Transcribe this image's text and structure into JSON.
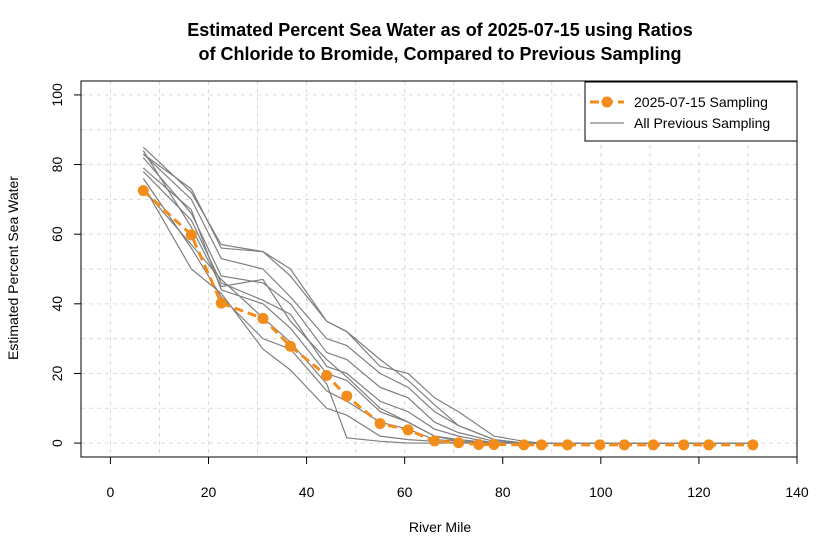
{
  "chart_data": {
    "type": "line",
    "title_lines": [
      "Estimated Percent Sea Water as of 2025-07-15 using Ratios",
      "of Chloride to Bromide, Compared to Previous Sampling"
    ],
    "xlabel": "River Mile",
    "ylabel": "Estimated Percent Sea Water",
    "xlim": [
      -6,
      140
    ],
    "ylim": [
      -4,
      104
    ],
    "xticks": [
      0,
      20,
      40,
      60,
      80,
      100,
      120,
      140
    ],
    "yticks": [
      0,
      20,
      40,
      60,
      80,
      100
    ],
    "grid": true,
    "legend_position": "top-right",
    "series": [
      {
        "name": "2025-07-15 Sampling",
        "color": "#f28c1a",
        "style": "dashed-with-points",
        "x": [
          6.7,
          16.5,
          22.6,
          31.1,
          36.7,
          44.1,
          48.2,
          55.0,
          60.7,
          66.1,
          71.0,
          75.1,
          78.2,
          84.3,
          87.9,
          93.2,
          99.8,
          104.8,
          110.7,
          116.9,
          122.0,
          131.0
        ],
        "y": [
          72.5,
          59.8,
          40.2,
          35.8,
          27.8,
          19.4,
          13.5,
          5.6,
          3.8,
          0.6,
          0.1,
          -0.4,
          -0.4,
          -0.5,
          -0.5,
          -0.5,
          -0.5,
          -0.5,
          -0.5,
          -0.5,
          -0.5,
          -0.5
        ]
      },
      {
        "name": "All Previous Sampling",
        "color": "#7f7f7f",
        "style": "thin-lines",
        "lines": [
          {
            "x": [
              6.7,
              16.5,
              22.6,
              31.1,
              36.7,
              44.1,
              48.2,
              55.0,
              60.7,
              66.1,
              71.0,
              78.2,
              84.3,
              87.9,
              93.2,
              131.0
            ],
            "y": [
              85,
              72,
              57,
              55,
              50,
              35,
              32,
              24,
              18,
              11,
              5,
              1,
              0,
              0,
              0,
              0
            ]
          },
          {
            "x": [
              6.7,
              16.5,
              22.6,
              31.1,
              36.7,
              44.1,
              48.2,
              55.0,
              60.7,
              66.1,
              71.0,
              78.2,
              84.3,
              87.9,
              93.2,
              131.0
            ],
            "y": [
              83,
              73,
              56,
              55,
              48,
              35,
              32,
              22,
              20,
              13,
              9,
              2,
              0.5,
              0,
              0,
              0
            ]
          },
          {
            "x": [
              6.7,
              16.5,
              22.6,
              31.1,
              36.7,
              44.1,
              48.2,
              55.0,
              60.7,
              66.1,
              71.0,
              78.2,
              84.3,
              87.9,
              93.2,
              131.0
            ],
            "y": [
              83,
              70,
              53,
              50,
              42,
              30,
              28,
              20,
              16,
              9,
              5,
              1,
              0,
              0,
              0,
              0
            ]
          },
          {
            "x": [
              6.7,
              16.5,
              22.6,
              31.1,
              36.7,
              44.1,
              48.2,
              55.0,
              60.7,
              66.1,
              71.0,
              78.2,
              84.3,
              87.9,
              93.2,
              131.0
            ],
            "y": [
              82,
              66,
              48,
              46,
              40,
              26,
              24,
              16,
              13,
              6,
              3,
              0.5,
              0,
              0,
              0,
              0
            ]
          },
          {
            "x": [
              6.7,
              16.5,
              22.6,
              31.1,
              36.7,
              44.1,
              48.2,
              55.0,
              60.7,
              66.1,
              71.0,
              78.2,
              84.3,
              87.9,
              93.2,
              131.0
            ],
            "y": [
              78,
              64,
              46,
              41,
              37,
              22,
              20,
              12,
              9,
              4,
              2,
              0,
              0,
              0,
              0,
              0
            ]
          },
          {
            "x": [
              6.7,
              16.5,
              22.6,
              31.1,
              36.7,
              44.1,
              48.2,
              55.0,
              60.7,
              66.1,
              71.0,
              78.2,
              84.3,
              87.9,
              93.2,
              131.0
            ],
            "y": [
              79,
              67,
              44,
              40,
              33,
              20,
              18,
              9,
              6,
              2,
              1,
              0,
              0,
              0,
              0,
              0
            ]
          },
          {
            "x": [
              6.7,
              16.5,
              22.6,
              31.1,
              36.7,
              44.1,
              48.2,
              55.0,
              60.7,
              66.1,
              71.0,
              78.2,
              84.3,
              87.9,
              93.2,
              131.0
            ],
            "y": [
              76,
              56,
              42,
              30,
              27,
              15,
              12,
              6,
              4,
              1,
              0.5,
              0,
              0,
              0,
              0,
              0
            ]
          },
          {
            "x": [
              6.7,
              16.5,
              22.6,
              31.1,
              36.7,
              44.1,
              48.2,
              55.0,
              60.7,
              66.1,
              71.0,
              78.2,
              84.3,
              87.9,
              93.2,
              131.0
            ],
            "y": [
              74,
              50,
              43,
              27,
              21,
              10,
              8,
              2,
              1,
              0.5,
              0,
              0,
              0,
              0,
              0,
              0
            ]
          },
          {
            "x": [
              6.7,
              16.5,
              22.6,
              31.1,
              36.7,
              44.1,
              48.2,
              55.0,
              60.7,
              66.1,
              71.0,
              78.2,
              84.3,
              87.9,
              93.2,
              131.0
            ],
            "y": [
              84,
              62,
              45,
              47,
              35,
              24,
              19,
              10,
              6,
              2,
              0.5,
              0,
              0,
              0,
              0,
              0
            ]
          },
          {
            "x": [
              6.7,
              16.5,
              22.6,
              31.1,
              36.7,
              44.1,
              48.2,
              55.0,
              60.7,
              66.1,
              71.0,
              78.2,
              84.3,
              87.9,
              93.2,
              131.0
            ],
            "y": [
              73,
              57,
              47,
              36,
              29,
              17,
              1.5,
              0.5,
              0,
              0,
              0,
              0,
              0,
              0,
              0,
              0
            ]
          }
        ]
      }
    ]
  }
}
